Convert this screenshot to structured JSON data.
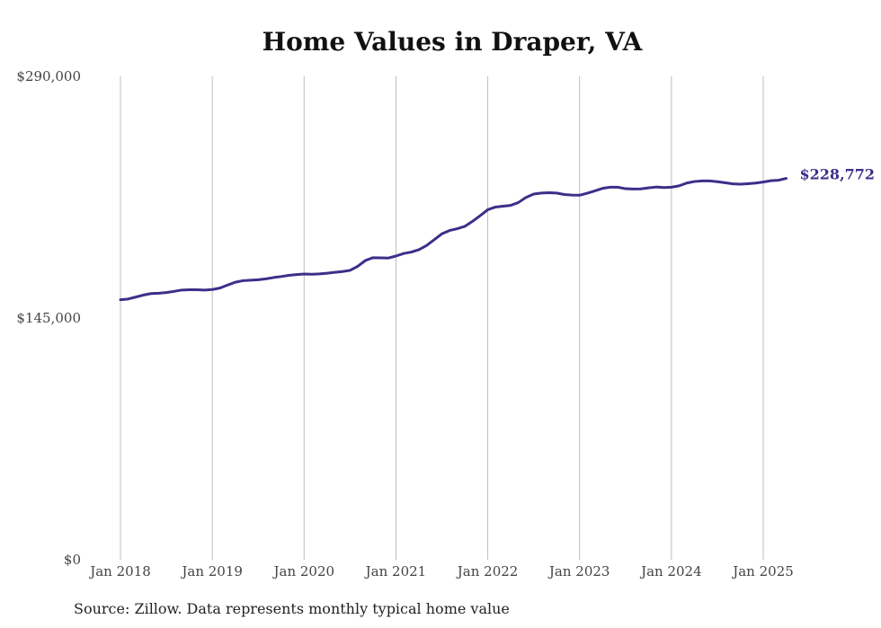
{
  "source_note": "Source: Zillow. Data represents monthly typical home value",
  "chart_data": {
    "type": "line",
    "title": "Home Values in Draper, VA",
    "xlabel": "",
    "ylabel": "",
    "ylim": [
      0,
      290000
    ],
    "y_ticks": [
      {
        "value": 0,
        "label": "$0"
      },
      {
        "value": 145000,
        "label": "$145,000"
      },
      {
        "value": 290000,
        "label": "$290,000"
      }
    ],
    "x_ticks": [
      {
        "value": 2018.0,
        "label": "Jan 2018"
      },
      {
        "value": 2019.0,
        "label": "Jan 2019"
      },
      {
        "value": 2020.0,
        "label": "Jan 2020"
      },
      {
        "value": 2021.0,
        "label": "Jan 2021"
      },
      {
        "value": 2022.0,
        "label": "Jan 2022"
      },
      {
        "value": 2023.0,
        "label": "Jan 2023"
      },
      {
        "value": 2024.0,
        "label": "Jan 2024"
      },
      {
        "value": 2025.0,
        "label": "Jan 2025"
      }
    ],
    "grid": "vertical",
    "line_color": "#3b2f8a",
    "end_label": "$228,772",
    "series": [
      {
        "x": [
          2018.0,
          2018.083,
          2018.167,
          2018.25,
          2018.333,
          2018.417,
          2018.5,
          2018.583,
          2018.667,
          2018.75,
          2018.833,
          2018.917,
          2019.0,
          2019.083,
          2019.167,
          2019.25,
          2019.333,
          2019.417,
          2019.5,
          2019.583,
          2019.667,
          2019.75,
          2019.833,
          2019.917,
          2020.0,
          2020.083,
          2020.167,
          2020.25,
          2020.333,
          2020.417,
          2020.5,
          2020.583,
          2020.667,
          2020.75,
          2020.833,
          2020.917,
          2021.0,
          2021.083,
          2021.167,
          2021.25,
          2021.333,
          2021.417,
          2021.5,
          2021.583,
          2021.667,
          2021.75,
          2021.833,
          2021.917,
          2022.0,
          2022.083,
          2022.167,
          2022.25,
          2022.333,
          2022.417,
          2022.5,
          2022.583,
          2022.667,
          2022.75,
          2022.833,
          2022.917,
          2023.0,
          2023.083,
          2023.167,
          2023.25,
          2023.333,
          2023.417,
          2023.5,
          2023.583,
          2023.667,
          2023.75,
          2023.833,
          2023.917,
          2024.0,
          2024.083,
          2024.167,
          2024.25,
          2024.333,
          2024.417,
          2024.5,
          2024.583,
          2024.667,
          2024.75,
          2024.833,
          2024.917,
          2025.0,
          2025.083,
          2025.167,
          2025.25
        ],
        "values": [
          156000,
          156400,
          157600,
          158800,
          159700,
          159900,
          160300,
          161000,
          161800,
          162000,
          162000,
          161800,
          162100,
          163000,
          164800,
          166500,
          167400,
          167700,
          168000,
          168500,
          169300,
          169900,
          170600,
          171100,
          171400,
          171300,
          171500,
          171900,
          172400,
          172900,
          173600,
          176000,
          179500,
          181200,
          181100,
          181000,
          182200,
          183700,
          184600,
          186000,
          188500,
          192000,
          195500,
          197500,
          198600,
          200000,
          203000,
          206400,
          210000,
          211600,
          212100,
          212600,
          214300,
          217400,
          219400,
          220000,
          220200,
          220000,
          219100,
          218800,
          218700,
          219900,
          221300,
          222800,
          223500,
          223500,
          222600,
          222400,
          222500,
          223100,
          223600,
          223300,
          223500,
          224300,
          226000,
          226900,
          227300,
          227300,
          226800,
          226200,
          225500,
          225300,
          225600,
          226000,
          226600,
          227400,
          227700,
          228772
        ]
      }
    ]
  }
}
